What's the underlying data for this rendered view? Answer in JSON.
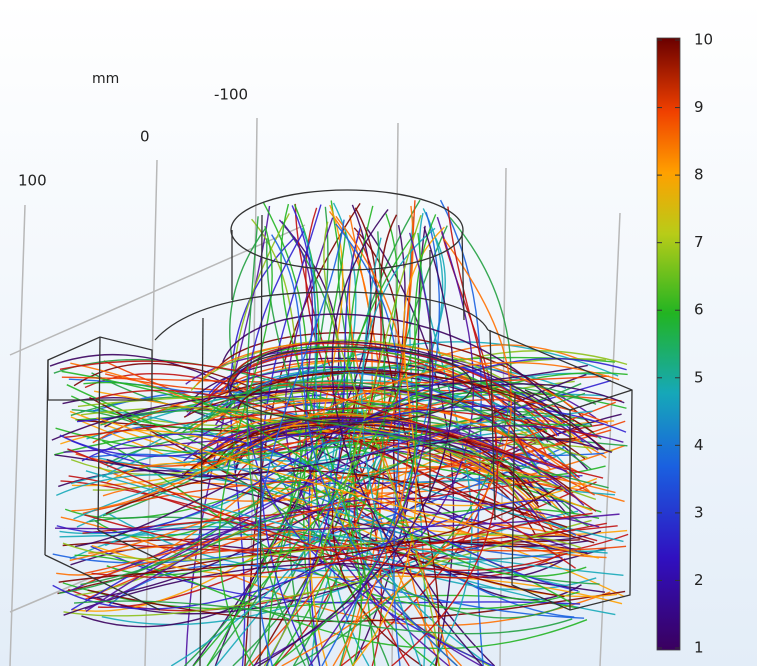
{
  "axis": {
    "unit": "mm",
    "labels": [
      -100,
      0,
      100
    ]
  },
  "colorbar": {
    "range": [
      1,
      10
    ],
    "ticks": [
      1,
      2,
      3,
      4,
      5,
      6,
      7,
      8,
      9,
      10
    ]
  }
}
